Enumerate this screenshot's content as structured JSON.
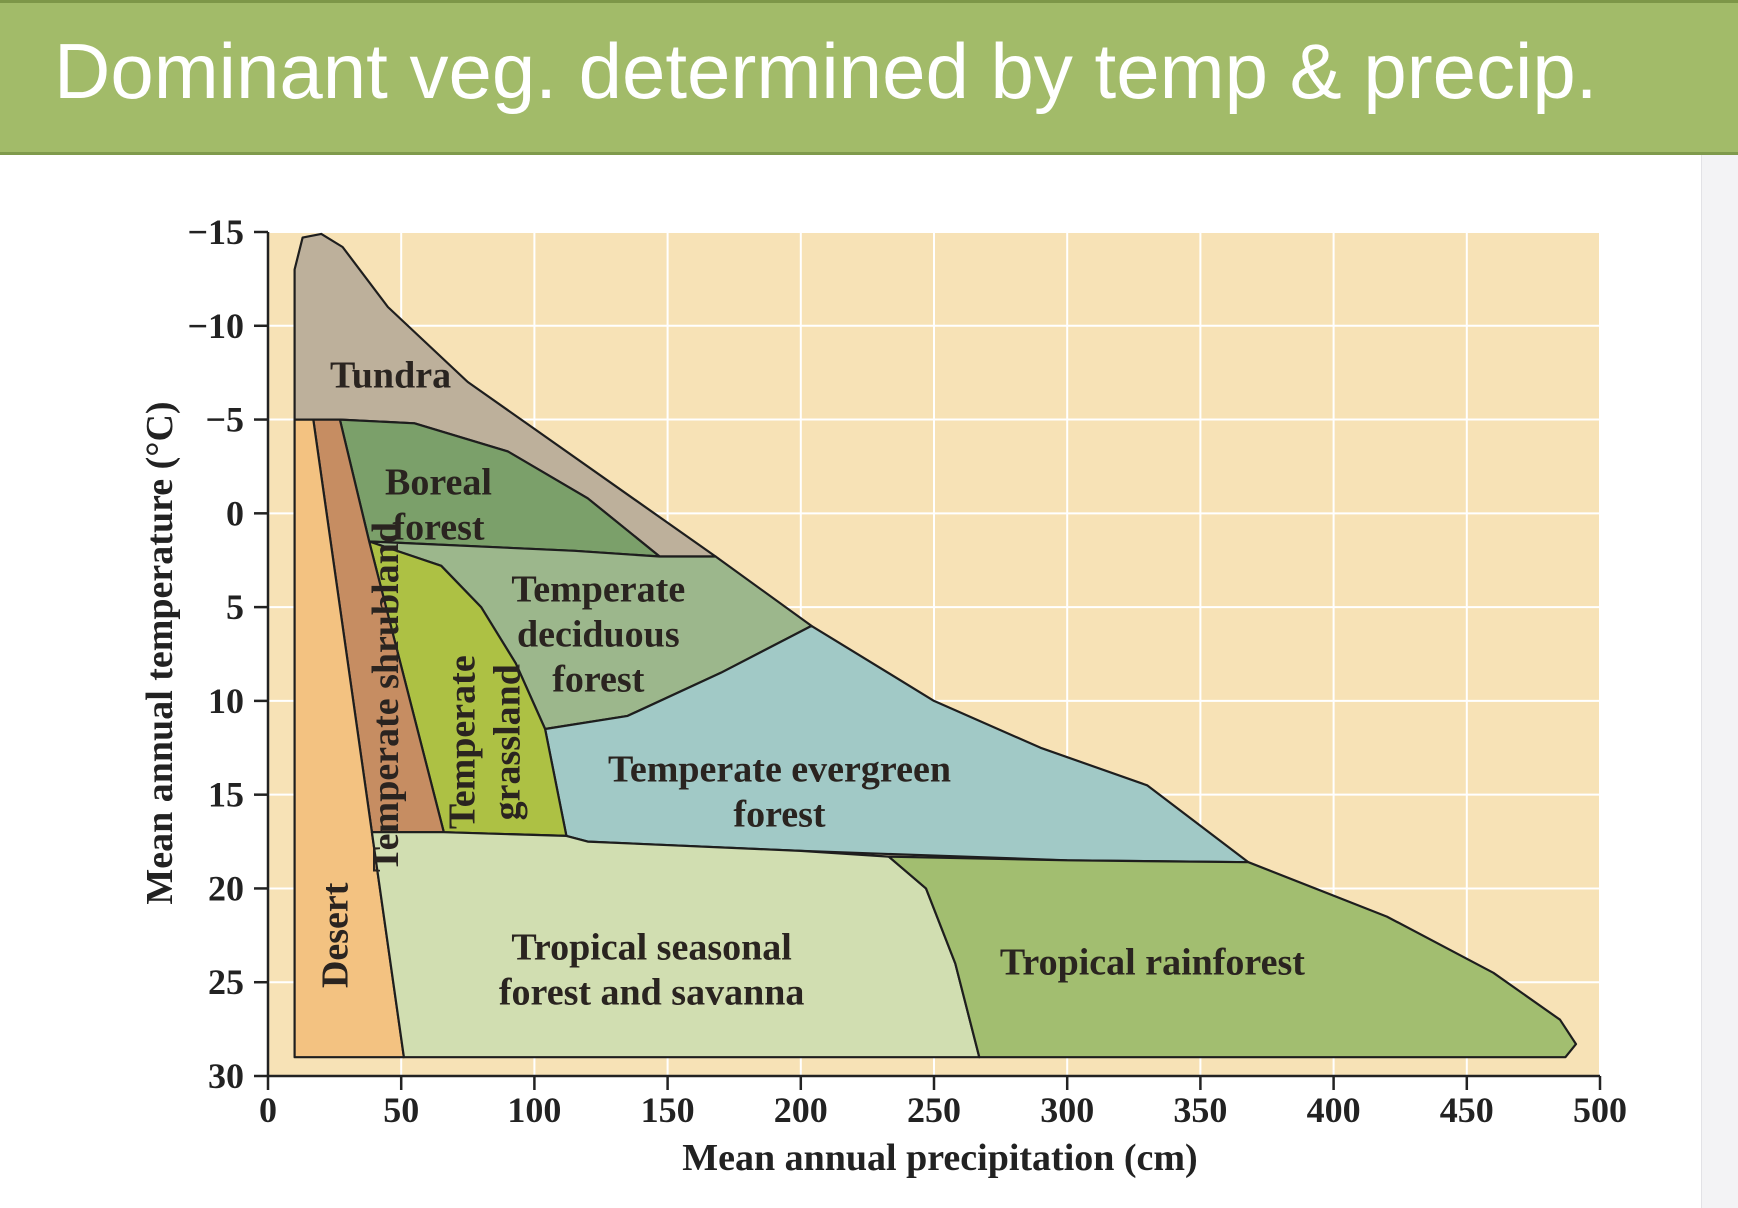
{
  "slide": {
    "title": "Dominant veg. determined by temp & precip."
  },
  "colors": {
    "title_bar": "#a2bb69",
    "plot_background": "#f7e2b6",
    "grid": "#ffffff"
  },
  "chart_data": {
    "type": "area",
    "title": "",
    "xlabel": "Mean annual precipitation (cm)",
    "ylabel": "Mean annual temperature (°C)",
    "xlim": [
      0,
      500
    ],
    "ylim": [
      -15,
      30
    ],
    "y_inverted": true,
    "grid": true,
    "x_ticks": [
      "0",
      "50",
      "100",
      "150",
      "200",
      "250",
      "300",
      "350",
      "400",
      "450",
      "500"
    ],
    "y_ticks": [
      "−15",
      "−10",
      "−5",
      "0",
      "5",
      "10",
      "15",
      "20",
      "25",
      "30"
    ],
    "regions": [
      {
        "name": "Tundra",
        "label_lines": [
          "Tundra"
        ],
        "color": "#bdb09b",
        "points": [
          [
            10,
            -5
          ],
          [
            10,
            -13
          ],
          [
            13,
            -14.7
          ],
          [
            20,
            -14.9
          ],
          [
            28,
            -14.2
          ],
          [
            45,
            -11
          ],
          [
            75,
            -7
          ],
          [
            100,
            -4.5
          ],
          [
            130,
            -1.5
          ],
          [
            168,
            2.3
          ],
          [
            147,
            2.3
          ],
          [
            120,
            -0.8
          ],
          [
            90,
            -3.3
          ],
          [
            55,
            -4.8
          ],
          [
            27,
            -5
          ]
        ]
      },
      {
        "name": "Boreal forest",
        "label_lines": [
          "Boreal",
          "forest"
        ],
        "color": "#7ba06a",
        "points": [
          [
            27,
            -5
          ],
          [
            55,
            -4.8
          ],
          [
            90,
            -3.3
          ],
          [
            120,
            -0.8
          ],
          [
            147,
            2.3
          ],
          [
            115,
            2
          ],
          [
            38,
            1.5
          ]
        ]
      },
      {
        "name": "Temperate deciduous forest",
        "label_lines": [
          "Temperate",
          "deciduous",
          "forest"
        ],
        "color": "#9cb78c",
        "points": [
          [
            38,
            1.5
          ],
          [
            115,
            2
          ],
          [
            147,
            2.3
          ],
          [
            168,
            2.3
          ],
          [
            204,
            6
          ],
          [
            170,
            8.5
          ],
          [
            135,
            10.8
          ],
          [
            104,
            11.5
          ],
          [
            93,
            8
          ],
          [
            80,
            5
          ],
          [
            65,
            2.8
          ]
        ]
      },
      {
        "name": "Temperate evergreen forest",
        "label_lines": [
          "Temperate evergreen",
          "forest"
        ],
        "color": "#a1c9c6",
        "points": [
          [
            104,
            11.5
          ],
          [
            135,
            10.8
          ],
          [
            170,
            8.5
          ],
          [
            204,
            6
          ],
          [
            250,
            10
          ],
          [
            290,
            12.5
          ],
          [
            330,
            14.5
          ],
          [
            368,
            18.6
          ],
          [
            300,
            18.5
          ],
          [
            200,
            18
          ],
          [
            120,
            17.5
          ],
          [
            112,
            17.2
          ]
        ]
      },
      {
        "name": "Temperate grassland",
        "label_lines": [
          "Temperate",
          "grassland"
        ],
        "color": "#adc144",
        "points": [
          [
            38,
            1.5
          ],
          [
            65,
            2.8
          ],
          [
            80,
            5
          ],
          [
            93,
            8
          ],
          [
            104,
            11.5
          ],
          [
            112,
            17.2
          ],
          [
            66,
            17
          ]
        ]
      },
      {
        "name": "Temperate shrubland",
        "label_lines": [
          "Temperate shrubland"
        ],
        "color": "#c68d62",
        "points": [
          [
            17,
            -5
          ],
          [
            27,
            -5
          ],
          [
            38,
            1.5
          ],
          [
            66,
            17
          ],
          [
            39,
            17
          ]
        ]
      },
      {
        "name": "Desert",
        "label_lines": [
          "Desert"
        ],
        "color": "#f3c281",
        "points": [
          [
            10,
            -5
          ],
          [
            17,
            -5
          ],
          [
            39,
            17
          ],
          [
            51,
            29
          ]
        ],
        "closeVia": [
          [
            10,
            29
          ]
        ]
      },
      {
        "name": "Tropical seasonal forest and savanna",
        "label_lines": [
          "Tropical seasonal",
          "forest and savanna"
        ],
        "color": "#d1deb1",
        "points": [
          [
            39,
            17
          ],
          [
            66,
            17
          ],
          [
            112,
            17.2
          ],
          [
            120,
            17.5
          ],
          [
            200,
            18
          ],
          [
            233,
            18.3
          ],
          [
            247,
            20
          ],
          [
            258,
            24
          ],
          [
            267,
            29
          ],
          [
            51,
            29
          ]
        ]
      },
      {
        "name": "Tropical rainforest",
        "label_lines": [
          "Tropical rainforest"
        ],
        "color": "#a2be70",
        "points": [
          [
            233,
            18.3
          ],
          [
            300,
            18.5
          ],
          [
            368,
            18.6
          ],
          [
            420,
            21.5
          ],
          [
            460,
            24.5
          ],
          [
            485,
            27
          ],
          [
            491,
            28.3
          ],
          [
            487,
            29
          ],
          [
            267,
            29
          ],
          [
            258,
            24
          ],
          [
            247,
            20
          ]
        ]
      }
    ]
  }
}
